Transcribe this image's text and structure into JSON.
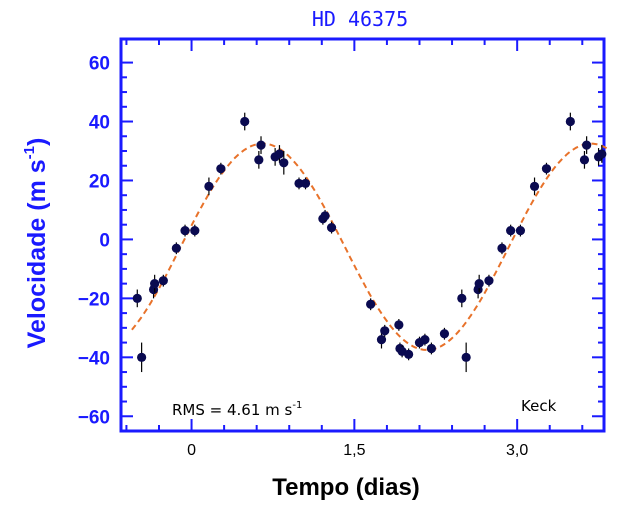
{
  "chart_data": {
    "type": "scatter",
    "title": "HD 46375",
    "xlabel": "Tempo (dias)",
    "ylabel": "Velocidade (m s",
    "ylabel_exp": "-1",
    "ylabel_close": ")",
    "xlim": [
      -0.65,
      3.8
    ],
    "ylim": [
      -65,
      68
    ],
    "yticks": [
      -60,
      -40,
      -20,
      0,
      20,
      40,
      60
    ],
    "ytick_labels": [
      "−60",
      "−40",
      "−20",
      "0",
      "20",
      "40",
      "60"
    ],
    "xticks": [
      0,
      1.5,
      3.0
    ],
    "xtick_labels": [
      "0",
      "1,5",
      "3,0"
    ],
    "annotations": {
      "rms_prefix": "RMS = 4.61 m s",
      "rms_exp": "-1",
      "telescope": "Keck"
    },
    "colors": {
      "axis": "#1a1aff",
      "points": "#0a0a50",
      "fit": "#e8722a"
    },
    "fit": {
      "type": "sinusoid",
      "amplitude": 35,
      "offset": -2.5,
      "period": 3.024,
      "phase_x0": -0.1
    },
    "points": [
      {
        "x": -0.5,
        "y": -20,
        "err": 3
      },
      {
        "x": -0.46,
        "y": -40,
        "err": 5
      },
      {
        "x": -0.35,
        "y": -17,
        "err": 3
      },
      {
        "x": -0.34,
        "y": -15,
        "err": 3
      },
      {
        "x": -0.26,
        "y": -14,
        "err": 2
      },
      {
        "x": -0.14,
        "y": -3,
        "err": 2
      },
      {
        "x": -0.06,
        "y": 3,
        "err": 2
      },
      {
        "x": 0.03,
        "y": 3,
        "err": 2
      },
      {
        "x": 0.16,
        "y": 18,
        "err": 3
      },
      {
        "x": 0.27,
        "y": 24,
        "err": 2
      },
      {
        "x": 0.49,
        "y": 40,
        "err": 3
      },
      {
        "x": 0.62,
        "y": 27,
        "err": 3
      },
      {
        "x": 0.64,
        "y": 32,
        "err": 3
      },
      {
        "x": 0.77,
        "y": 28,
        "err": 3
      },
      {
        "x": 0.81,
        "y": 29,
        "err": 3
      },
      {
        "x": 0.85,
        "y": 26,
        "err": 4
      },
      {
        "x": 0.99,
        "y": 19,
        "err": 2
      },
      {
        "x": 1.05,
        "y": 19,
        "err": 2
      },
      {
        "x": 1.21,
        "y": 7,
        "err": 2
      },
      {
        "x": 1.23,
        "y": 8,
        "err": 2
      },
      {
        "x": 1.29,
        "y": 4,
        "err": 2
      },
      {
        "x": 1.65,
        "y": -22,
        "err": 2
      },
      {
        "x": 1.75,
        "y": -34,
        "err": 3
      },
      {
        "x": 1.78,
        "y": -31,
        "err": 2
      },
      {
        "x": 1.91,
        "y": -29,
        "err": 2
      },
      {
        "x": 1.92,
        "y": -37,
        "err": 2
      },
      {
        "x": 1.94,
        "y": -38,
        "err": 2
      },
      {
        "x": 2.0,
        "y": -39,
        "err": 2
      },
      {
        "x": 2.1,
        "y": -35,
        "err": 2
      },
      {
        "x": 2.15,
        "y": -34,
        "err": 2
      },
      {
        "x": 2.21,
        "y": -37,
        "err": 2
      },
      {
        "x": 2.33,
        "y": -32,
        "err": 2
      },
      {
        "x": 2.49,
        "y": -20,
        "err": 3
      },
      {
        "x": 2.53,
        "y": -40,
        "err": 5
      },
      {
        "x": 2.64,
        "y": -17,
        "err": 3
      },
      {
        "x": 2.65,
        "y": -15,
        "err": 3
      },
      {
        "x": 2.74,
        "y": -14,
        "err": 2
      },
      {
        "x": 2.86,
        "y": -3,
        "err": 2
      },
      {
        "x": 2.94,
        "y": 3,
        "err": 2
      },
      {
        "x": 3.03,
        "y": 3,
        "err": 2
      },
      {
        "x": 3.16,
        "y": 18,
        "err": 3
      },
      {
        "x": 3.27,
        "y": 24,
        "err": 2
      },
      {
        "x": 3.49,
        "y": 40,
        "err": 3
      },
      {
        "x": 3.62,
        "y": 27,
        "err": 3
      },
      {
        "x": 3.64,
        "y": 32,
        "err": 3
      },
      {
        "x": 3.75,
        "y": 28,
        "err": 3
      },
      {
        "x": 3.78,
        "y": 29,
        "err": 3
      },
      {
        "x": 3.81,
        "y": 26,
        "err": 4
      }
    ]
  }
}
